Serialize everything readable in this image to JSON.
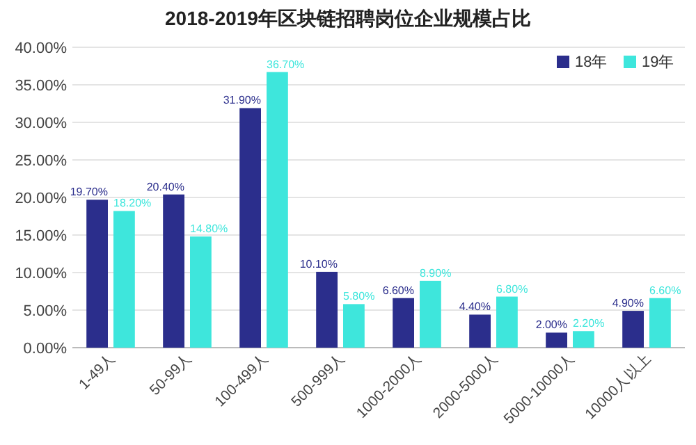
{
  "chart_data": {
    "type": "bar",
    "title": "2018-2019年区块链招聘岗位企业规模占比",
    "categories": [
      "1-49人",
      "50-99人",
      "100-499人",
      "500-999人",
      "1000-2000人",
      "2000-5000人",
      "5000-10000人",
      "10000人以上"
    ],
    "series": [
      {
        "name": "18年",
        "color": "#2b2e8c",
        "values": [
          19.7,
          20.4,
          31.9,
          10.1,
          6.6,
          4.4,
          2.0,
          4.9
        ],
        "value_labels": [
          "19.70%",
          "20.40%",
          "31.90%",
          "10.10%",
          "6.60%",
          "4.40%",
          "2.00%",
          "4.90%"
        ]
      },
      {
        "name": "19年",
        "color": "#3ee6dc",
        "values": [
          18.2,
          14.8,
          36.7,
          5.8,
          8.9,
          6.8,
          2.2,
          6.6
        ],
        "value_labels": [
          "18.20%",
          "14.80%",
          "36.70%",
          "5.80%",
          "8.90%",
          "6.80%",
          "2.20%",
          "6.60%"
        ]
      }
    ],
    "ylim": [
      0,
      40
    ],
    "yticks": [
      {
        "value": 0,
        "label": "0.00%"
      },
      {
        "value": 5,
        "label": "5.00%"
      },
      {
        "value": 10,
        "label": "10.00%"
      },
      {
        "value": 15,
        "label": "15.00%"
      },
      {
        "value": 20,
        "label": "20.00%"
      },
      {
        "value": 25,
        "label": "25.00%"
      },
      {
        "value": 30,
        "label": "30.00%"
      },
      {
        "value": 35,
        "label": "35.00%"
      },
      {
        "value": 40,
        "label": "40.00%"
      }
    ],
    "grid": "y",
    "legend": "top right"
  }
}
